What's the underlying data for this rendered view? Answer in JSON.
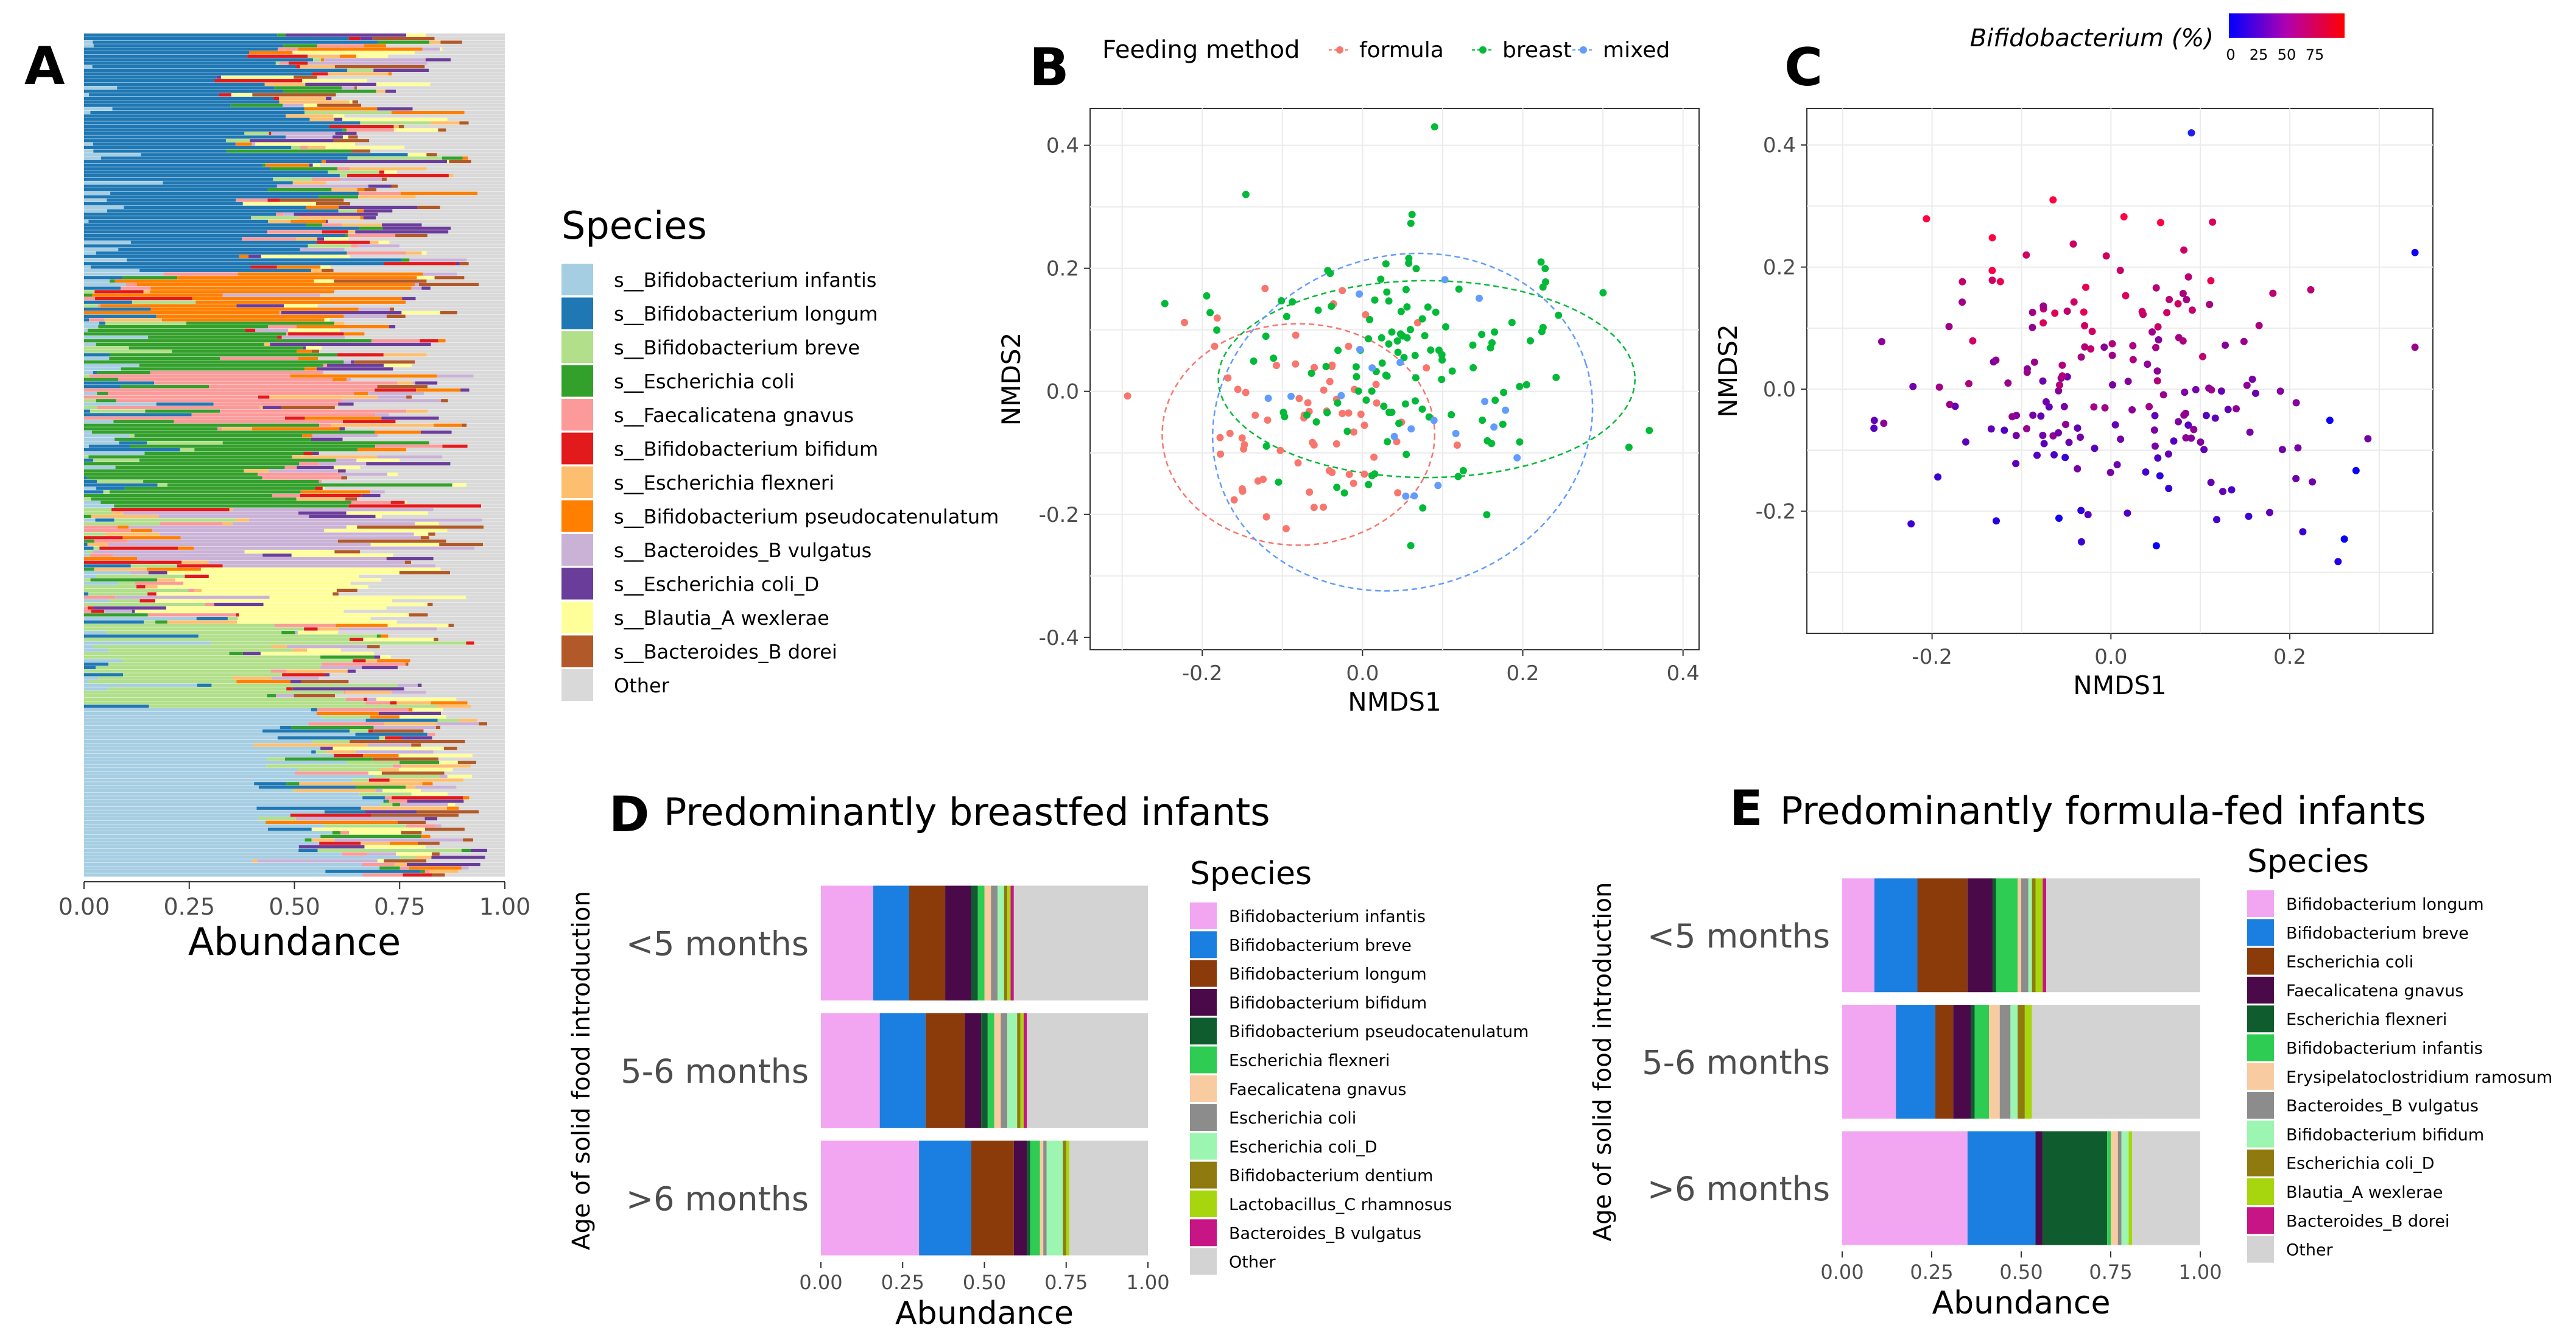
{
  "chart_data": [
    {
      "panel": "A",
      "type": "bar",
      "orientation": "horizontal",
      "stacked": true,
      "xlabel": "Abundance",
      "xticks": [
        "0.00",
        "0.25",
        "0.50",
        "0.75",
        "1.00"
      ],
      "xlim": [
        0,
        1
      ],
      "n_samples": 240,
      "legend_title": "Species",
      "legend": [
        {
          "name": "s__Bifidobacterium infantis",
          "color": "#A6CEE3"
        },
        {
          "name": "s__Bifidobacterium longum",
          "color": "#1F78B4"
        },
        {
          "name": "s__Bifidobacterium breve",
          "color": "#B2DF8A"
        },
        {
          "name": "s__Escherichia coli",
          "color": "#33A02C"
        },
        {
          "name": "s__Faecalicatena gnavus",
          "color": "#FB9A99"
        },
        {
          "name": "s__Bifidobacterium bifidum",
          "color": "#E31A1C"
        },
        {
          "name": "s__Escherichia flexneri",
          "color": "#FDBF6F"
        },
        {
          "name": "s__Bifidobacterium pseudocatenulatum",
          "color": "#FF7F00"
        },
        {
          "name": "s__Bacteroides_B vulgatus",
          "color": "#CAB2D6"
        },
        {
          "name": "s__Escherichia coli_D",
          "color": "#6A3D9A"
        },
        {
          "name": "s__Blautia_A wexlerae",
          "color": "#FFFF99"
        },
        {
          "name": "s__Bacteroides_B dorei",
          "color": "#B15928"
        },
        {
          "name": "Other",
          "color": "#D9D9D9"
        }
      ]
    },
    {
      "panel": "B",
      "type": "scatter",
      "xlabel": "NMDS1",
      "ylabel": "NMDS2",
      "xlim": [
        -0.34,
        0.42
      ],
      "ylim": [
        -0.42,
        0.46
      ],
      "xticks": [
        "-0.2",
        "0.0",
        "0.2",
        "0.4"
      ],
      "yticks": [
        "0.4",
        "0.2",
        "0.0",
        "-0.2",
        "-0.4"
      ],
      "legend_title": "Feeding method",
      "legend": [
        {
          "name": "formula",
          "color": "#F8766D"
        },
        {
          "name": "breast",
          "color": "#00BA38"
        },
        {
          "name": "mixed",
          "color": "#619CFF"
        }
      ],
      "ellipses": [
        {
          "group": "formula",
          "cx": -0.08,
          "cy": -0.07,
          "rx": 0.17,
          "ry": 0.18
        },
        {
          "group": "breast",
          "cx": 0.08,
          "cy": 0.02,
          "rx": 0.26,
          "ry": 0.16
        },
        {
          "group": "mixed",
          "cx": 0.05,
          "cy": -0.05,
          "rx": 0.24,
          "ry": 0.27
        }
      ],
      "point_count": 215
    },
    {
      "panel": "C",
      "type": "scatter",
      "xlabel": "NMDS1",
      "ylabel": "NMDS2",
      "xlim": [
        -0.34,
        0.36
      ],
      "ylim": [
        -0.4,
        0.46
      ],
      "xticks": [
        "-0.2",
        "0.0",
        "0.2"
      ],
      "yticks": [
        "0.4",
        "0.2",
        "0.0",
        "-0.2"
      ],
      "color_title": "Bifidobacterium (%)",
      "color_ticks": [
        "0",
        "25",
        "50",
        "75"
      ],
      "color_low": "#0000FF",
      "color_high": "#FF0000",
      "point_count": 185
    },
    {
      "panel": "D",
      "type": "bar",
      "orientation": "horizontal",
      "stacked": true,
      "title": "Predominantly breastfed infants",
      "xlabel": "Abundance",
      "ylabel": "Age of solid food introduction",
      "xticks": [
        "0.00",
        "0.25",
        "0.50",
        "0.75",
        "1.00"
      ],
      "categories": [
        "<5 months",
        "5-6 months",
        ">6 months"
      ],
      "legend_title": "Species",
      "series": [
        {
          "name": "Bifidobacterium infantis",
          "color": "#F2A6F2",
          "values": [
            0.16,
            0.18,
            0.3
          ]
        },
        {
          "name": "Bifidobacterium breve",
          "color": "#1A7FE0",
          "values": [
            0.11,
            0.14,
            0.16
          ]
        },
        {
          "name": "Bifidobacterium longum",
          "color": "#8B3A0A",
          "values": [
            0.11,
            0.12,
            0.13
          ]
        },
        {
          "name": "Bifidobacterium bifidum",
          "color": "#4A0A4A",
          "values": [
            0.08,
            0.05,
            0.04
          ]
        },
        {
          "name": "Bifidobacterium pseudocatenulatum",
          "color": "#0F5C2E",
          "values": [
            0.02,
            0.02,
            0.01
          ]
        },
        {
          "name": "Escherichia flexneri",
          "color": "#2ECC52",
          "values": [
            0.02,
            0.02,
            0.03
          ]
        },
        {
          "name": "Faecalicatena gnavus",
          "color": "#F8CBA0",
          "values": [
            0.02,
            0.02,
            0.01
          ]
        },
        {
          "name": "Escherichia coli",
          "color": "#8C8C8C",
          "values": [
            0.02,
            0.02,
            0.01
          ]
        },
        {
          "name": "Escherichia coli_D",
          "color": "#9CF5B0",
          "values": [
            0.02,
            0.03,
            0.05
          ]
        },
        {
          "name": "Bifidobacterium dentium",
          "color": "#8F7A0F",
          "values": [
            0.01,
            0.01,
            0.01
          ]
        },
        {
          "name": "Lactobacillus_C rhamnosus",
          "color": "#A8D60E",
          "values": [
            0.01,
            0.01,
            0.01
          ]
        },
        {
          "name": "Bacteroides_B vulgatus",
          "color": "#C71585",
          "values": [
            0.01,
            0.01,
            0.0
          ]
        },
        {
          "name": "Other",
          "color": "#D3D3D3",
          "values": [
            0.41,
            0.37,
            0.24
          ]
        }
      ]
    },
    {
      "panel": "E",
      "type": "bar",
      "orientation": "horizontal",
      "stacked": true,
      "title": "Predominantly formula-fed infants",
      "xlabel": "Abundance",
      "ylabel": "Age of solid food introduction",
      "xticks": [
        "0.00",
        "0.25",
        "0.50",
        "0.75",
        "1.00"
      ],
      "categories": [
        "<5 months",
        "5-6 months",
        ">6 months"
      ],
      "legend_title": "Species",
      "series": [
        {
          "name": "Bifidobacterium longum",
          "color": "#F2A6F2",
          "values": [
            0.09,
            0.15,
            0.35
          ]
        },
        {
          "name": "Bifidobacterium breve",
          "color": "#1A7FE0",
          "values": [
            0.12,
            0.11,
            0.19
          ]
        },
        {
          "name": "Escherichia coli",
          "color": "#8B3A0A",
          "values": [
            0.14,
            0.05,
            0.0
          ]
        },
        {
          "name": "Faecalicatena gnavus",
          "color": "#4A0A4A",
          "values": [
            0.07,
            0.05,
            0.02
          ]
        },
        {
          "name": "Escherichia flexneri",
          "color": "#0F5C2E",
          "values": [
            0.01,
            0.01,
            0.18
          ]
        },
        {
          "name": "Bifidobacterium infantis",
          "color": "#2ECC52",
          "values": [
            0.06,
            0.04,
            0.01
          ]
        },
        {
          "name": "Erysipelatoclostridium ramosum",
          "color": "#F8CBA0",
          "values": [
            0.01,
            0.03,
            0.02
          ]
        },
        {
          "name": "Bacteroides_B vulgatus",
          "color": "#8C8C8C",
          "values": [
            0.02,
            0.03,
            0.01
          ]
        },
        {
          "name": "Bifidobacterium bifidum",
          "color": "#9CF5B0",
          "values": [
            0.01,
            0.02,
            0.02
          ]
        },
        {
          "name": "Escherichia coli_D",
          "color": "#8F7A0F",
          "values": [
            0.01,
            0.02,
            0.0
          ]
        },
        {
          "name": "Blautia_A wexlerae",
          "color": "#A8D60E",
          "values": [
            0.02,
            0.02,
            0.01
          ]
        },
        {
          "name": "Bacteroides_B dorei",
          "color": "#C71585",
          "values": [
            0.01,
            0.0,
            0.0
          ]
        },
        {
          "name": "Other",
          "color": "#D3D3D3",
          "values": [
            0.43,
            0.47,
            0.19
          ]
        }
      ]
    }
  ]
}
